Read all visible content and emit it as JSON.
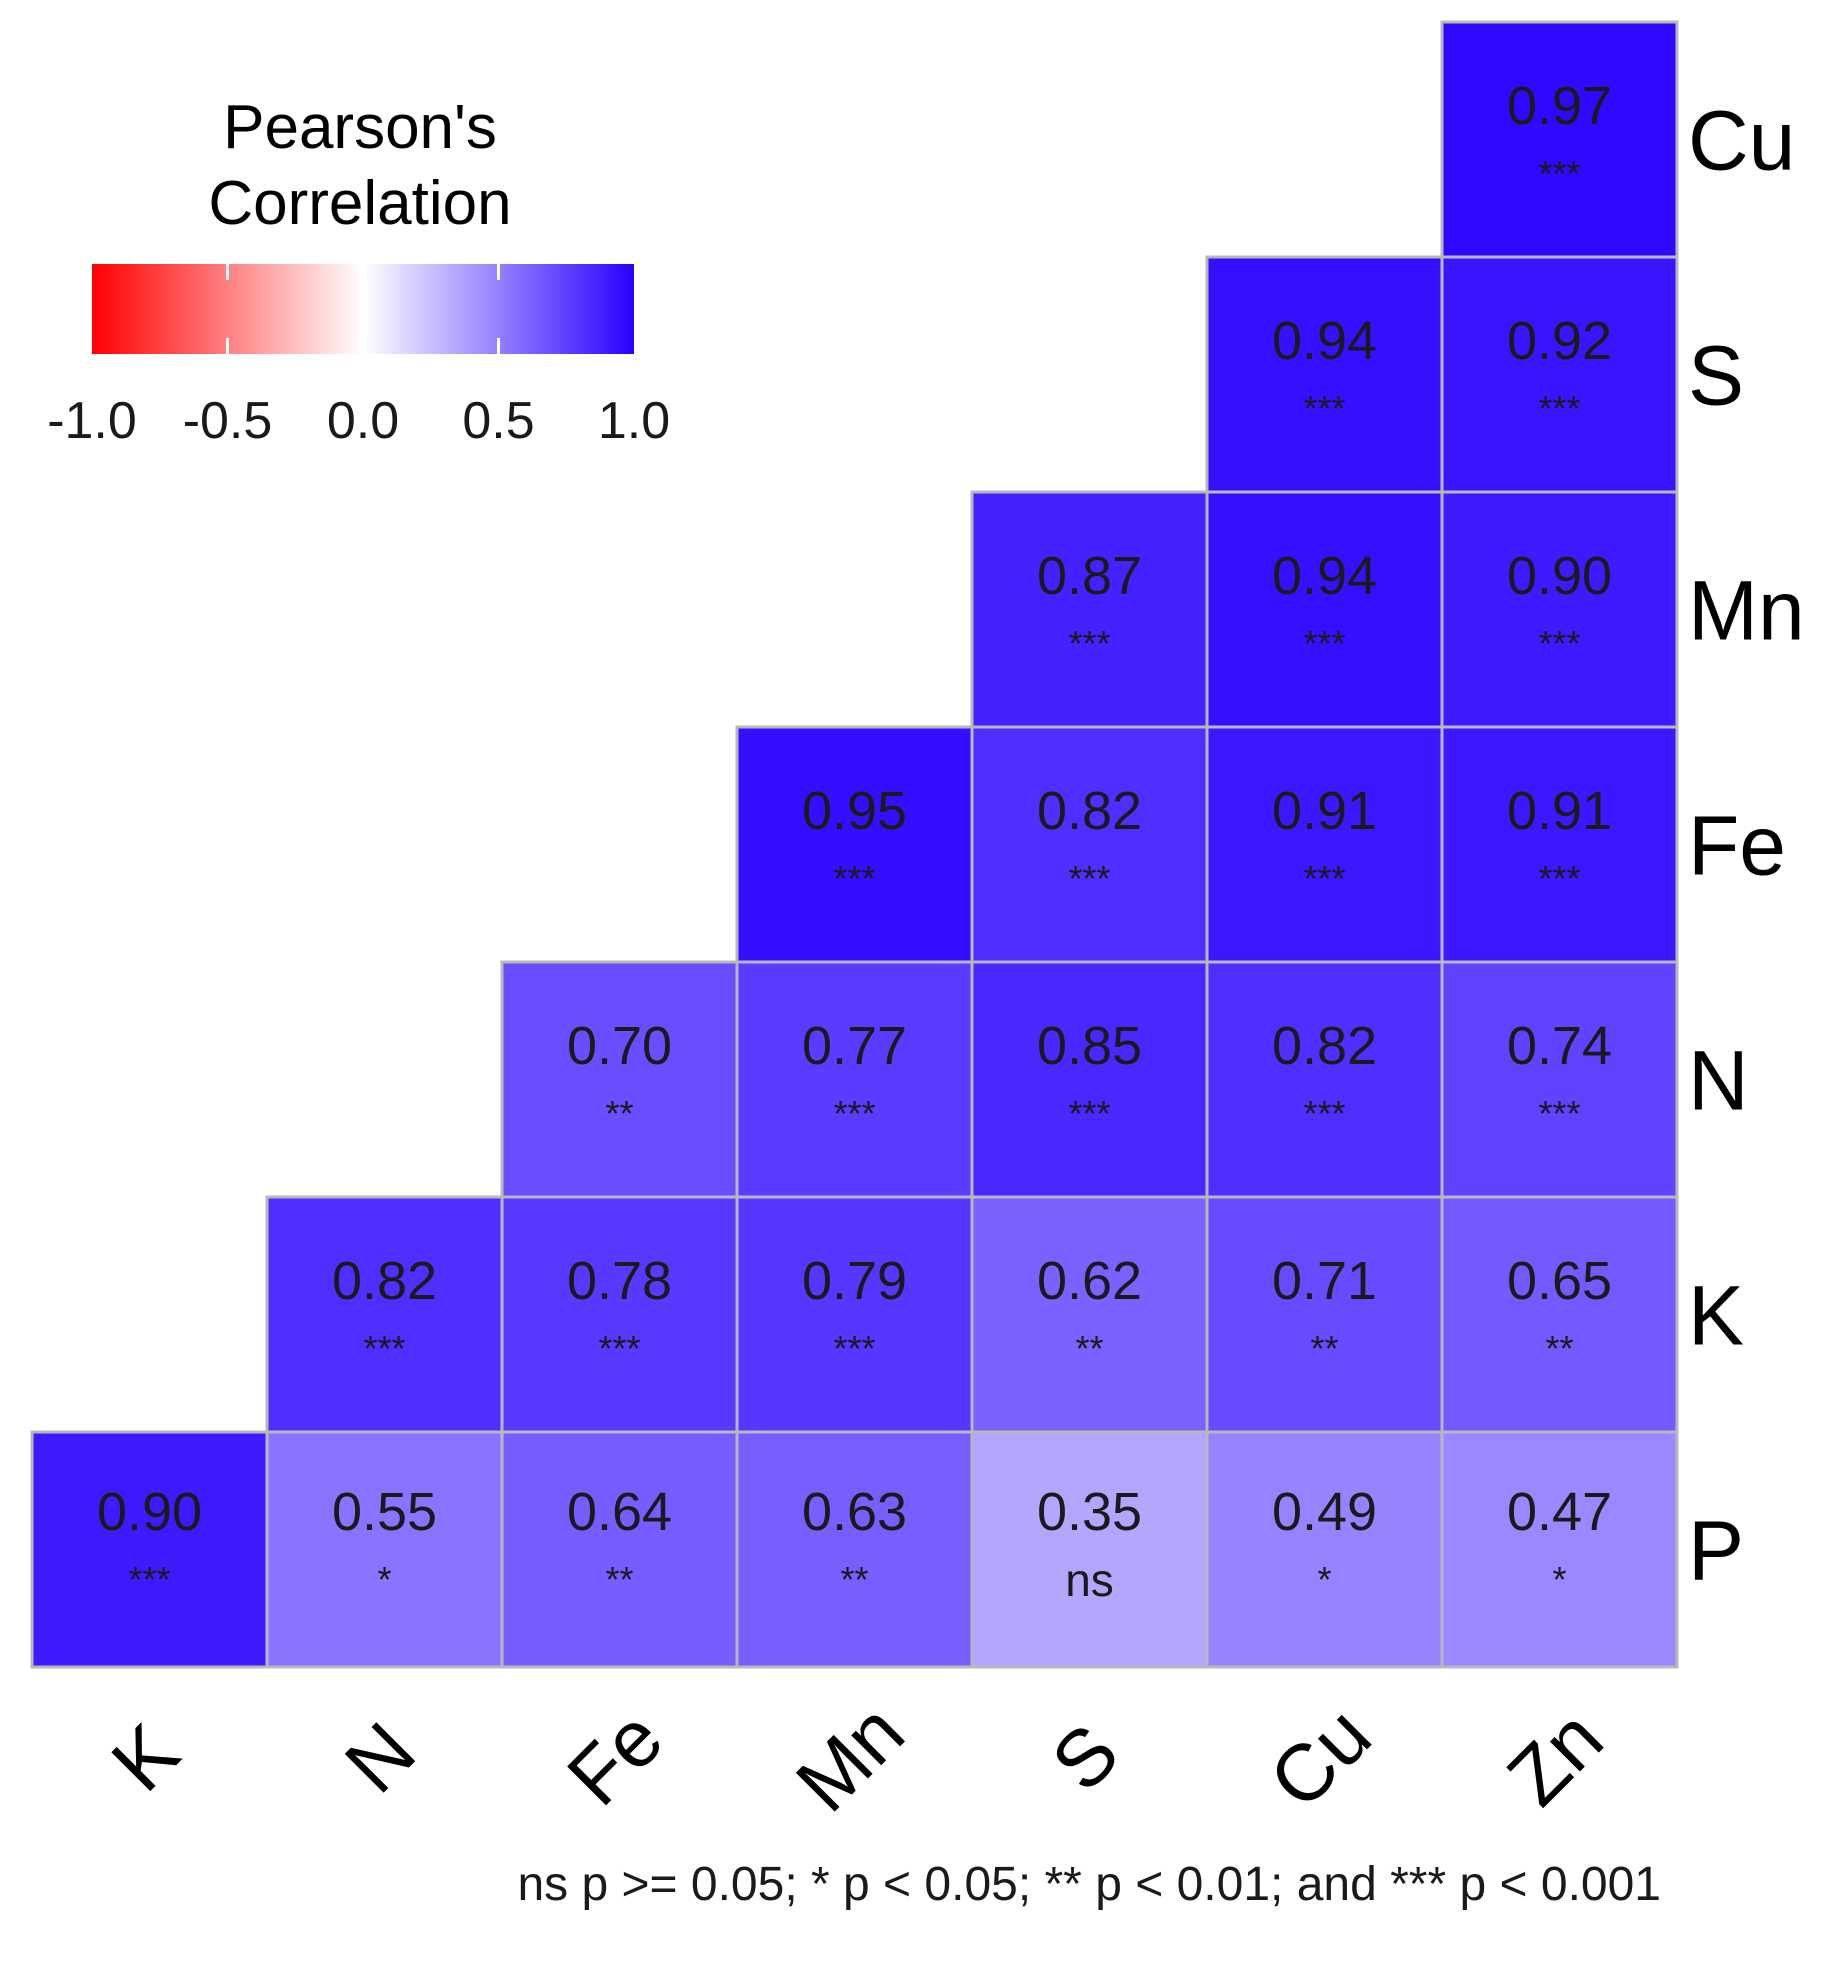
{
  "chart_data": {
    "type": "heatmap",
    "title": "",
    "legend": {
      "title_line1": "Pearson's",
      "title_line2": "Correlation",
      "ticks": [
        "-1.0",
        "-0.5",
        "0.0",
        "0.5",
        "1.0"
      ],
      "tick_values": [
        -1.0,
        -0.5,
        0.0,
        0.5,
        1.0
      ],
      "range": [
        -1,
        1
      ],
      "colors": {
        "low": "#ff0000",
        "mid": "#ffffff",
        "high": "#2a00ff"
      },
      "placement": "top-left"
    },
    "x_labels": [
      "K",
      "N",
      "Fe",
      "Mn",
      "S",
      "Cu",
      "Zn"
    ],
    "y_labels": [
      "Cu",
      "S",
      "Mn",
      "Fe",
      "N",
      "K",
      "P"
    ],
    "cells": [
      {
        "x": "Zn",
        "y": "Cu",
        "value": 0.97,
        "sig": "***"
      },
      {
        "x": "Cu",
        "y": "S",
        "value": 0.94,
        "sig": "***"
      },
      {
        "x": "Zn",
        "y": "S",
        "value": 0.92,
        "sig": "***"
      },
      {
        "x": "S",
        "y": "Mn",
        "value": 0.87,
        "sig": "***"
      },
      {
        "x": "Cu",
        "y": "Mn",
        "value": 0.94,
        "sig": "***"
      },
      {
        "x": "Zn",
        "y": "Mn",
        "value": 0.9,
        "sig": "***"
      },
      {
        "x": "Mn",
        "y": "Fe",
        "value": 0.95,
        "sig": "***"
      },
      {
        "x": "S",
        "y": "Fe",
        "value": 0.82,
        "sig": "***"
      },
      {
        "x": "Cu",
        "y": "Fe",
        "value": 0.91,
        "sig": "***"
      },
      {
        "x": "Zn",
        "y": "Fe",
        "value": 0.91,
        "sig": "***"
      },
      {
        "x": "Fe",
        "y": "N",
        "value": 0.7,
        "sig": "**"
      },
      {
        "x": "Mn",
        "y": "N",
        "value": 0.77,
        "sig": "***"
      },
      {
        "x": "S",
        "y": "N",
        "value": 0.85,
        "sig": "***"
      },
      {
        "x": "Cu",
        "y": "N",
        "value": 0.82,
        "sig": "***"
      },
      {
        "x": "Zn",
        "y": "N",
        "value": 0.74,
        "sig": "***"
      },
      {
        "x": "N",
        "y": "K",
        "value": 0.82,
        "sig": "***"
      },
      {
        "x": "Fe",
        "y": "K",
        "value": 0.78,
        "sig": "***"
      },
      {
        "x": "Mn",
        "y": "K",
        "value": 0.79,
        "sig": "***"
      },
      {
        "x": "S",
        "y": "K",
        "value": 0.62,
        "sig": "**"
      },
      {
        "x": "Cu",
        "y": "K",
        "value": 0.71,
        "sig": "**"
      },
      {
        "x": "Zn",
        "y": "K",
        "value": 0.65,
        "sig": "**"
      },
      {
        "x": "K",
        "y": "P",
        "value": 0.9,
        "sig": "***"
      },
      {
        "x": "N",
        "y": "P",
        "value": 0.55,
        "sig": "*"
      },
      {
        "x": "Fe",
        "y": "P",
        "value": 0.64,
        "sig": "**"
      },
      {
        "x": "Mn",
        "y": "P",
        "value": 0.63,
        "sig": "**"
      },
      {
        "x": "S",
        "y": "P",
        "value": 0.35,
        "sig": "ns"
      },
      {
        "x": "Cu",
        "y": "P",
        "value": 0.49,
        "sig": "*"
      },
      {
        "x": "Zn",
        "y": "P",
        "value": 0.47,
        "sig": "*"
      }
    ],
    "caption": "ns p >= 0.05; * p < 0.05; ** p < 0.01; and *** p < 0.001"
  }
}
